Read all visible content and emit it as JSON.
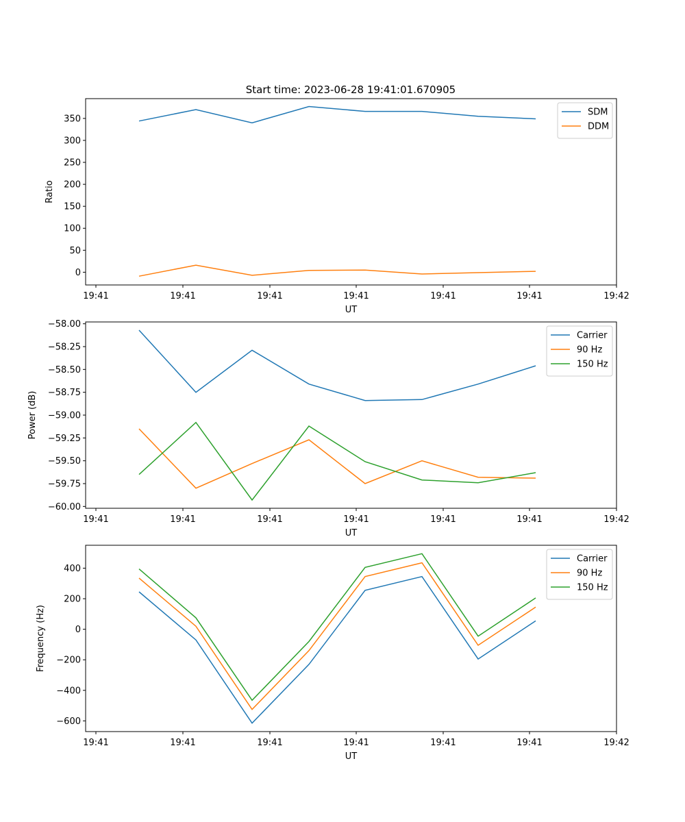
{
  "title": "Start time: 2023-06-28 19:41:01.670905",
  "chart_data": [
    {
      "type": "line",
      "xlabel": "UT",
      "ylabel": "Ratio",
      "x_ticks": [
        "19:41",
        "19:41",
        "19:41",
        "19:41",
        "19:41",
        "19:41",
        "19:42"
      ],
      "y_ticks": [
        "0",
        "50",
        "100",
        "150",
        "200",
        "250",
        "300",
        "350"
      ],
      "ylim": [
        -29,
        395
      ],
      "legend_position": "top-right",
      "series": [
        {
          "name": "SDM",
          "color": "#1f77b4",
          "values": [
            344,
            370,
            340,
            377,
            366,
            366,
            355,
            349
          ]
        },
        {
          "name": "DDM",
          "color": "#ff7f0e",
          "values": [
            -9,
            16,
            -7,
            4,
            5,
            -4,
            -1,
            2
          ]
        }
      ]
    },
    {
      "type": "line",
      "xlabel": "UT",
      "ylabel": "Power (dB)",
      "x_ticks": [
        "19:41",
        "19:41",
        "19:41",
        "19:41",
        "19:41",
        "19:41",
        "19:42"
      ],
      "y_ticks": [
        "−60.00",
        "−59.75",
        "−59.50",
        "−59.25",
        "−59.00",
        "−58.75",
        "−58.50",
        "−58.25",
        "−58.00"
      ],
      "ylim": [
        -60.02,
        -57.98
      ],
      "legend_position": "top-right",
      "series": [
        {
          "name": "Carrier",
          "color": "#1f77b4",
          "values": [
            -58.07,
            -58.75,
            -58.29,
            -58.66,
            -58.84,
            -58.83,
            -58.66,
            -58.46
          ]
        },
        {
          "name": "90 Hz",
          "color": "#ff7f0e",
          "values": [
            -59.15,
            -59.8,
            -59.53,
            -59.27,
            -59.75,
            -59.5,
            -59.68,
            -59.69
          ]
        },
        {
          "name": "150 Hz",
          "color": "#2ca02c",
          "values": [
            -59.65,
            -59.08,
            -59.93,
            -59.12,
            -59.51,
            -59.71,
            -59.74,
            -59.63
          ]
        }
      ]
    },
    {
      "type": "line",
      "xlabel": "UT",
      "ylabel": "Frequency (Hz)",
      "x_ticks": [
        "19:41",
        "19:41",
        "19:41",
        "19:41",
        "19:41",
        "19:41",
        "19:42"
      ],
      "y_ticks": [
        "−600",
        "−400",
        "−200",
        "0",
        "200",
        "400"
      ],
      "ylim": [
        -670,
        550
      ],
      "legend_position": "top-right",
      "series": [
        {
          "name": "Carrier",
          "color": "#1f77b4",
          "values": [
            245,
            -70,
            -615,
            -230,
            255,
            345,
            -195,
            55
          ]
        },
        {
          "name": "90 Hz",
          "color": "#ff7f0e",
          "values": [
            335,
            20,
            -525,
            -140,
            345,
            435,
            -105,
            145
          ]
        },
        {
          "name": "150 Hz",
          "color": "#2ca02c",
          "values": [
            395,
            75,
            -465,
            -80,
            405,
            495,
            -45,
            205
          ]
        }
      ]
    }
  ]
}
